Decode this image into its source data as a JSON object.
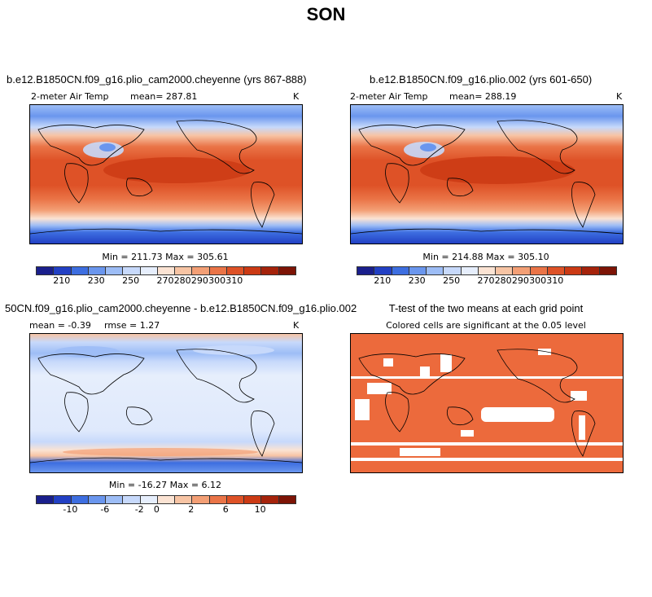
{
  "title": "SON",
  "panels": [
    {
      "title": "b.e12.B1850CN.f09_g16.plio_cam2000.cheyenne (yrs 867-888)",
      "left_label": "2-meter Air Temp",
      "mean_label": "mean= 287.81",
      "units": "K",
      "stats": "Min = 211.73 Max = 305.61"
    },
    {
      "title": "b.e12.B1850CN.f09_g16.plio.002 (yrs 601-650)",
      "left_label": "2-meter Air Temp",
      "mean_label": "mean= 288.19",
      "units": "K",
      "stats": "Min = 214.88 Max = 305.10"
    },
    {
      "title": "50CN.f09_g16.plio_cam2000.cheyenne - b.e12.B1850CN.f09_g16.plio.002",
      "left_label": "mean =  -0.39",
      "mean_label": "rmse =   1.27",
      "units": "K",
      "stats": "Min = -16.27 Max =   6.12"
    },
    {
      "title": "T-test of the two means at each grid point",
      "subtitle": "Colored cells are significant at the 0.05 level"
    }
  ],
  "colorbar_abs": {
    "ticks": [
      "210",
      "230",
      "250",
      "270",
      "280",
      "290",
      "300",
      "310"
    ],
    "colors": [
      "#1a1f8c",
      "#2240c4",
      "#3d6ee0",
      "#6a96ee",
      "#9dbdf6",
      "#c7d9fb",
      "#e6eefc",
      "#fbe3d3",
      "#f7c4a4",
      "#f39f75",
      "#ea7447",
      "#de5227",
      "#cb3a14",
      "#a5230b",
      "#7d1406"
    ]
  },
  "colorbar_diff": {
    "ticks": [
      "-10",
      "-6",
      "-2",
      "0",
      "2",
      "6",
      "10"
    ],
    "colors": [
      "#1a1f8c",
      "#2240c4",
      "#3d6ee0",
      "#6a96ee",
      "#9dbdf6",
      "#c7d9fb",
      "#e6eefc",
      "#fbe3d3",
      "#f7c4a4",
      "#f39f75",
      "#ea7447",
      "#de5227",
      "#cb3a14",
      "#a5230b",
      "#7d1406"
    ]
  },
  "ttest_color": "#ec6a3c"
}
